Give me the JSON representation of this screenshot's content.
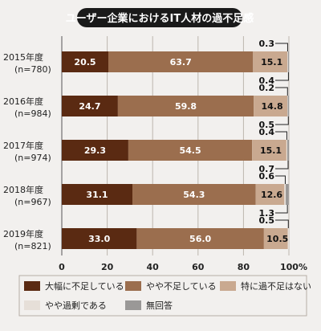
{
  "chart_data": {
    "type": "bar",
    "orientation": "horizontal",
    "stacked": true,
    "title": "ユーザー企業におけるIT人材の過不足感",
    "categories": [
      "2015年度",
      "2016年度",
      "2017年度",
      "2018年度",
      "2019年度"
    ],
    "sample_sizes": [
      "(n=780)",
      "(n=984)",
      "(n=974)",
      "(n=967)",
      "(n=821)"
    ],
    "series": [
      {
        "name": "大幅に不足している",
        "color": "#5a2a12",
        "values": [
          20.5,
          24.7,
          29.3,
          31.1,
          33.0
        ]
      },
      {
        "name": "やや不足している",
        "color": "#9b6e4e",
        "values": [
          63.7,
          59.8,
          54.5,
          54.3,
          56.0
        ]
      },
      {
        "name": "特に過不足はない",
        "color": "#c9a990",
        "values": [
          15.1,
          14.8,
          15.1,
          12.6,
          10.5
        ]
      },
      {
        "name": "やや過剰である",
        "color": "#e6dfd8",
        "values": [
          0.3,
          0.2,
          0.4,
          0.6,
          0.5
        ]
      },
      {
        "name": "無回答",
        "color": "#9a9897",
        "values": [
          0.4,
          0.5,
          0.7,
          1.3,
          0.0
        ]
      }
    ],
    "value_labels": {
      "series_0": [
        "20.5",
        "24.7",
        "29.3",
        "31.1",
        "33.0"
      ],
      "series_1": [
        "63.7",
        "59.8",
        "54.5",
        "54.3",
        "56.0"
      ],
      "series_2": [
        "15.1",
        "14.8",
        "15.1",
        "12.6",
        "10.5"
      ],
      "series_3": [
        "0.3",
        "0.2",
        "0.4",
        "0.6",
        "0.5"
      ],
      "series_4": [
        "0.4",
        "0.5",
        "0.7",
        "1.3",
        ""
      ]
    },
    "x_ticks": [
      "0",
      "20",
      "40",
      "60",
      "80",
      "100%"
    ],
    "xlim": [
      0,
      100
    ],
    "grid": true,
    "legend_position": "bottom"
  }
}
